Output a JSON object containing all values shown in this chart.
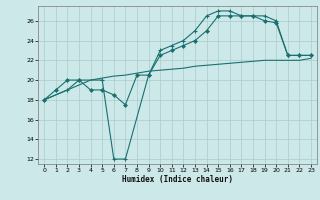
{
  "xlabel": "Humidex (Indice chaleur)",
  "bg_color": "#cde8e8",
  "grid_color": "#aacccc",
  "line_color": "#1a7070",
  "xlim": [
    -0.5,
    23.5
  ],
  "ylim": [
    11.5,
    27.5
  ],
  "xticks": [
    0,
    1,
    2,
    3,
    4,
    5,
    6,
    7,
    8,
    9,
    10,
    11,
    12,
    13,
    14,
    15,
    16,
    17,
    18,
    19,
    20,
    21,
    22,
    23
  ],
  "yticks": [
    12,
    14,
    16,
    18,
    20,
    22,
    24,
    26
  ],
  "line1_x": [
    0,
    1,
    2,
    3,
    4,
    5,
    6,
    7,
    8,
    9,
    10,
    11,
    12,
    13,
    14,
    15,
    16,
    17,
    18,
    19,
    20,
    21,
    22,
    23
  ],
  "line1_y": [
    18.0,
    18.5,
    19.0,
    19.5,
    20.0,
    20.2,
    20.4,
    20.5,
    20.7,
    20.9,
    21.0,
    21.1,
    21.2,
    21.4,
    21.5,
    21.6,
    21.7,
    21.8,
    21.9,
    22.0,
    22.0,
    22.0,
    22.0,
    22.2
  ],
  "line2_x": [
    0,
    2,
    3,
    5,
    6,
    7,
    9,
    10,
    11,
    12,
    13,
    14,
    15,
    16,
    17,
    18,
    19,
    20,
    21,
    22,
    23
  ],
  "line2_y": [
    18.0,
    19.0,
    20.0,
    20.0,
    12.0,
    12.0,
    20.5,
    23.0,
    23.5,
    24.0,
    25.0,
    26.5,
    27.0,
    27.0,
    26.5,
    26.5,
    26.5,
    26.0,
    22.5,
    22.5,
    22.5
  ],
  "line3_x": [
    0,
    1,
    2,
    3,
    4,
    5,
    6,
    7,
    8,
    9,
    10,
    11,
    12,
    13,
    14,
    15,
    16,
    17,
    18,
    19,
    20,
    21,
    22,
    23
  ],
  "line3_y": [
    18.0,
    19.0,
    20.0,
    20.0,
    19.0,
    19.0,
    18.5,
    17.5,
    20.5,
    20.5,
    22.5,
    23.0,
    23.5,
    24.0,
    25.0,
    26.5,
    26.5,
    26.5,
    26.5,
    26.0,
    25.8,
    22.5,
    22.5,
    22.5
  ]
}
